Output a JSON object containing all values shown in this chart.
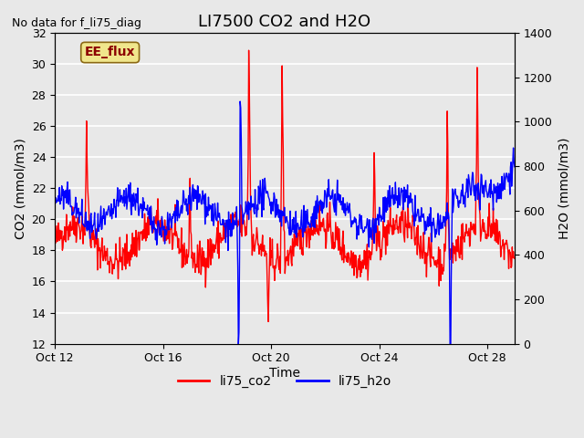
{
  "title": "LI7500 CO2 and H2O",
  "top_left_text": "No data for f_li75_diag",
  "xlabel": "Time",
  "ylabel_left": "CO2 (mmol/m3)",
  "ylabel_right": "H2O (mmol/m3)",
  "ylim_left": [
    12,
    32
  ],
  "ylim_right": [
    0,
    1400
  ],
  "yticks_left": [
    12,
    14,
    16,
    18,
    20,
    22,
    24,
    26,
    28,
    30,
    32
  ],
  "yticks_right": [
    0,
    200,
    400,
    600,
    800,
    1000,
    1200,
    1400
  ],
  "xlim": [
    0,
    17
  ],
  "xtick_positions": [
    0,
    4,
    8,
    12,
    16
  ],
  "xtick_labels": [
    "Oct 12",
    "Oct 16",
    "Oct 20",
    "Oct 24",
    "Oct 28"
  ],
  "legend_labels": [
    "li75_co2",
    "li75_h2o"
  ],
  "legend_colors": [
    "red",
    "blue"
  ],
  "line_width": 1.0,
  "background_color": "#e8e8e8",
  "plot_bg_color": "#e8e8e8",
  "grid_color": "white",
  "annotation_box_text": "EE_flux",
  "annotation_box_color": "#f0e68c",
  "annotation_box_border": "#8b6914"
}
